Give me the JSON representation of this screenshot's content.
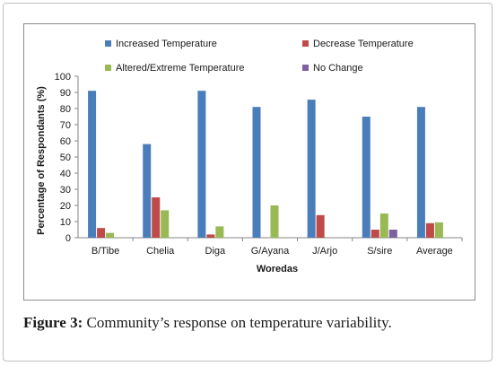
{
  "chart_data": {
    "type": "bar",
    "xlabel": "Woredas",
    "ylabel": "Percentage of Respondants (%)",
    "ylim": [
      0,
      100
    ],
    "yticks": [
      0,
      10,
      20,
      30,
      40,
      50,
      60,
      70,
      80,
      90,
      100
    ],
    "grid": false,
    "legend_position": "top",
    "categories": [
      "B/Tibe",
      "Chelia",
      "Diga",
      "G/Ayana",
      "J/Arjo",
      "S/sire",
      "Average"
    ],
    "series": [
      {
        "name": "Increased Temperature",
        "color": "#4a7ebb",
        "values": [
          91,
          58,
          91,
          81,
          85.5,
          75,
          81
        ]
      },
      {
        "name": "Decrease Temperature",
        "color": "#be4b48",
        "values": [
          6,
          25,
          2,
          0,
          14,
          5,
          9
        ]
      },
      {
        "name": "Altered/Extreme Temperature",
        "color": "#98b954",
        "values": [
          3,
          17,
          7,
          20,
          0,
          15,
          9.5
        ]
      },
      {
        "name": "No Change",
        "color": "#7d60a0",
        "values": [
          0,
          0,
          0,
          0,
          0,
          5,
          0
        ]
      }
    ]
  },
  "caption": {
    "label": "Figure 3:",
    "text": " Community’s response on temperature variability."
  }
}
